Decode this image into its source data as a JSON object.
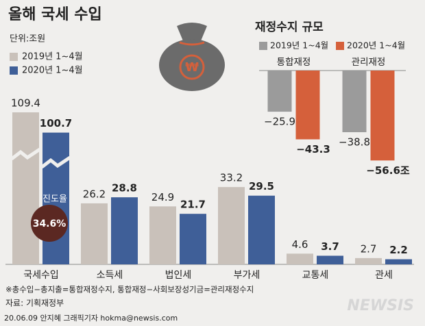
{
  "chart_data": [
    {
      "type": "bar",
      "title": "올해 국세 수입",
      "subtitle": "단위:조원",
      "categories": [
        "국세수입",
        "소득세",
        "법인세",
        "부가세",
        "교통세",
        "관세"
      ],
      "series": [
        {
          "name": "2019년 1~4월",
          "color": "#c9c1ba",
          "values": [
            109.4,
            26.2,
            24.9,
            33.2,
            4.6,
            2.7
          ]
        },
        {
          "name": "2020년 1~4월",
          "color": "#3f5f98",
          "values": [
            100.7,
            28.8,
            21.7,
            29.5,
            3.7,
            2.2
          ]
        }
      ],
      "annotations": [
        "진도율",
        "34.6%"
      ],
      "notes": [
        "※총수입−총지출=통합재정수지, 통합재정−사회보장성기금=관리재정수지",
        "자료: 기획재정부",
        "20.06.09 안지혜 그래픽기자 hokma@newsis.com",
        "NEWSIS"
      ]
    },
    {
      "type": "bar",
      "title": "재정수지 규모",
      "categories": [
        "통합재정",
        "관리재정"
      ],
      "series": [
        {
          "name": "2019년 1~4월",
          "color": "#9b9b9b",
          "values": [
            -25.9,
            -38.8
          ],
          "value_labels": [
            "−25.9",
            "−38.8"
          ]
        },
        {
          "name": "2020년 1~4월",
          "color": "#d5603b",
          "values": [
            -43.3,
            -56.6
          ],
          "value_labels": [
            "−43.3",
            "−56.6조"
          ]
        }
      ]
    }
  ]
}
